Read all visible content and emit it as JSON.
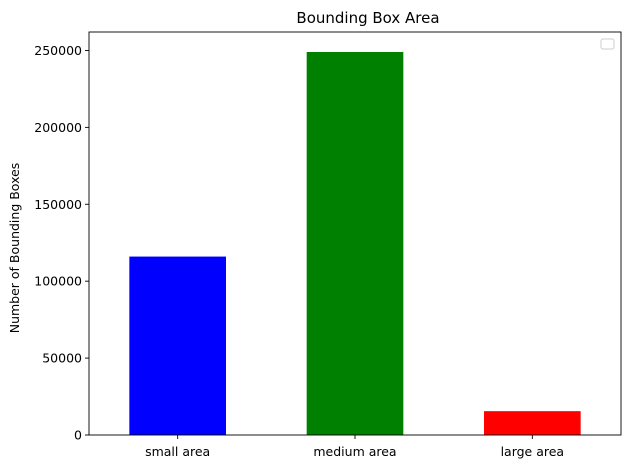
{
  "chart_data": {
    "type": "bar",
    "title": "Bounding Box Area",
    "xlabel": "",
    "ylabel": "Number of Bounding Boxes",
    "categories": [
      "small area",
      "medium area",
      "large area"
    ],
    "values": [
      116000,
      249000,
      15500
    ],
    "colors": [
      "#0000ff",
      "#008000",
      "#ff0000"
    ],
    "ylim": [
      0,
      262000
    ],
    "yticks": [
      0,
      50000,
      100000,
      150000,
      200000,
      250000
    ],
    "grid": false,
    "legend": {
      "visible": true,
      "placement": "top-right",
      "entries": []
    }
  }
}
